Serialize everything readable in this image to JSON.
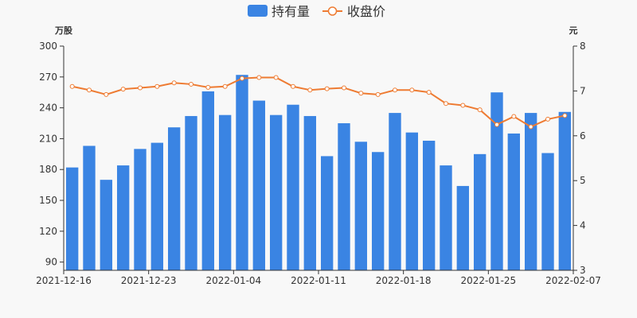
{
  "legend": {
    "bar_label": "持有量",
    "line_label": "收盘价"
  },
  "axes": {
    "left_unit": "万股",
    "right_unit": "元"
  },
  "colors": {
    "bar": "#3a84e3",
    "line": "#ee7b32",
    "axis": "#333333",
    "background": "#f8f8f8"
  },
  "chart_data": {
    "type": "bar",
    "x_tick_labels": [
      "2021-12-16",
      "2021-12-23",
      "2022-01-04",
      "2022-01-11",
      "2022-01-18",
      "2022-01-25",
      "2022-02-07"
    ],
    "categories": [
      "d1",
      "d2",
      "d3",
      "d4",
      "d5",
      "d6",
      "d7",
      "d8",
      "d9",
      "d10",
      "d11",
      "d12",
      "d13",
      "d14",
      "d15",
      "d16",
      "d17",
      "d18",
      "d19",
      "d20",
      "d21",
      "d22",
      "d23",
      "d24",
      "d25",
      "d26",
      "d27",
      "d28",
      "d29",
      "d30"
    ],
    "series": [
      {
        "name": "持有量",
        "type": "bar",
        "axis": "left",
        "values": [
          182,
          203,
          170,
          184,
          200,
          206,
          221,
          232,
          256,
          233,
          272,
          247,
          233,
          243,
          232,
          193,
          225,
          207,
          197,
          235,
          216,
          208,
          184,
          164,
          195,
          255,
          215,
          235,
          196,
          236
        ]
      },
      {
        "name": "收盘价",
        "type": "line",
        "axis": "right",
        "values": [
          7.1,
          7.02,
          6.92,
          7.04,
          7.07,
          7.1,
          7.18,
          7.15,
          7.08,
          7.1,
          7.28,
          7.3,
          7.3,
          7.1,
          7.02,
          7.05,
          7.07,
          6.95,
          6.92,
          7.02,
          7.02,
          6.97,
          6.72,
          6.68,
          6.58,
          6.25,
          6.43,
          6.2,
          6.37,
          6.45
        ]
      }
    ],
    "y_left": {
      "ticks": [
        90,
        120,
        150,
        180,
        210,
        240,
        270,
        300
      ],
      "min": 82,
      "max": 300
    },
    "y_right": {
      "ticks": [
        3,
        4,
        5,
        6,
        7,
        8
      ],
      "min": 3,
      "max": 8
    }
  }
}
